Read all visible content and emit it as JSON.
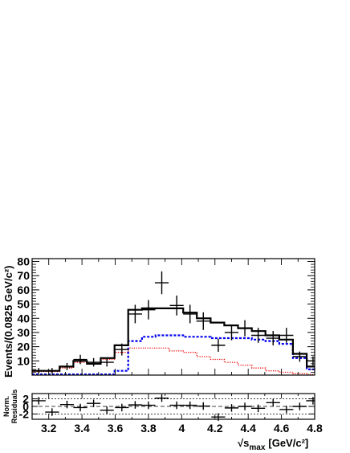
{
  "chart_data": [
    {
      "type": "histogram",
      "ylabel": "Events/(0.0825 GeV/c²)",
      "xlim": [
        3.1,
        4.8
      ],
      "ylim": [
        0,
        82
      ],
      "x_ticks": [
        "3.2",
        "3.4",
        "3.6",
        "3.8",
        "4",
        "4.2",
        "4.4",
        "4.6",
        "4.8"
      ],
      "y_ticks": [
        "10",
        "20",
        "30",
        "40",
        "50",
        "60",
        "70",
        "80"
      ],
      "bin_edges": [
        3.1,
        3.183,
        3.265,
        3.348,
        3.43,
        3.513,
        3.596,
        3.678,
        3.761,
        3.843,
        3.926,
        4.009,
        4.091,
        4.174,
        4.256,
        4.339,
        4.422,
        4.504,
        4.587,
        4.669,
        4.752,
        4.834
      ],
      "data_points": {
        "x": [
          3.14,
          3.22,
          3.31,
          3.39,
          3.47,
          3.55,
          3.64,
          3.72,
          3.8,
          3.88,
          3.97,
          4.05,
          4.13,
          4.22,
          4.3,
          4.38,
          4.46,
          4.55,
          4.63,
          4.71,
          4.79
        ],
        "y": [
          3,
          3,
          6,
          11,
          9,
          9,
          18,
          43,
          46,
          65,
          49,
          43,
          38,
          21,
          30,
          33,
          28,
          26,
          28,
          13,
          10
        ],
        "yerr": [
          2,
          2,
          2.5,
          3.3,
          3,
          3,
          4.2,
          6.5,
          6.8,
          8,
          7,
          6.5,
          6.2,
          4.6,
          5.5,
          5.7,
          5.3,
          5.1,
          5.3,
          3.6,
          3.2
        ]
      },
      "series": [
        {
          "name": "",
          "color": "#000000",
          "style": "solid",
          "values": [
            3,
            3,
            6,
            10,
            8,
            12,
            21,
            46,
            47,
            47,
            47,
            44,
            40,
            37,
            35,
            33,
            31,
            28,
            25,
            15,
            6
          ]
        },
        {
          "name": "",
          "color": "#0000ee",
          "style": "dashed",
          "values": [
            0.5,
            0.5,
            0.5,
            0.5,
            0.5,
            0.5,
            3,
            24,
            27,
            28,
            28,
            27,
            27,
            26,
            26,
            26,
            25,
            24,
            22,
            12,
            4
          ]
        },
        {
          "name": "",
          "color": "#ee0000",
          "style": "dotted",
          "values": [
            2.5,
            2.5,
            5,
            9,
            8,
            11,
            16,
            19,
            19,
            19,
            17,
            16,
            13,
            11,
            9,
            7,
            5,
            3,
            2,
            1,
            0.5
          ]
        }
      ]
    },
    {
      "type": "scatter",
      "ylabel": "Norm. Residuals",
      "xlabel": "√s_max [GeV/c²]",
      "xlabel_main": "√s",
      "xlabel_sub": "max",
      "xlabel_unit": "[GeV/c²]",
      "xlim": [
        3.1,
        4.8
      ],
      "ylim": [
        -3.4,
        3.4
      ],
      "y_ticks": [
        "2",
        "0",
        "-2"
      ],
      "x": [
        3.14,
        3.22,
        3.31,
        3.39,
        3.47,
        3.55,
        3.64,
        3.72,
        3.8,
        3.88,
        3.97,
        4.05,
        4.13,
        4.22,
        4.3,
        4.38,
        4.46,
        4.55,
        4.63,
        4.71,
        4.79
      ],
      "y": [
        1.5,
        -1.5,
        0.5,
        -0.3,
        0.8,
        -1.0,
        -0.3,
        0.4,
        0.3,
        2.2,
        0.3,
        0.3,
        0.1,
        -2.8,
        -0.4,
        0.0,
        -0.5,
        1.0,
        -0.8,
        0.0,
        1.5
      ]
    }
  ]
}
